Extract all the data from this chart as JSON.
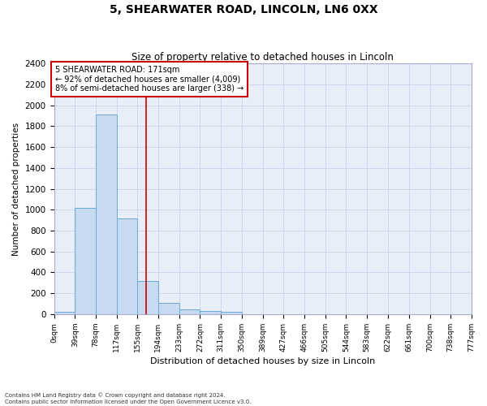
{
  "title": "5, SHEARWATER ROAD, LINCOLN, LN6 0XX",
  "subtitle": "Size of property relative to detached houses in Lincoln",
  "xlabel": "Distribution of detached houses by size in Lincoln",
  "ylabel": "Number of detached properties",
  "annotation_line1": "5 SHEARWATER ROAD: 171sqm",
  "annotation_line2": "← 92% of detached houses are smaller (4,009)",
  "annotation_line3": "8% of semi-detached houses are larger (338) →",
  "bin_edges": [
    0,
    39,
    78,
    117,
    155,
    194,
    233,
    272,
    311,
    350,
    389,
    427,
    466,
    505,
    544,
    583,
    622,
    661,
    700,
    738,
    777
  ],
  "bin_counts": [
    25,
    1020,
    1910,
    920,
    315,
    110,
    50,
    30,
    20,
    0,
    0,
    0,
    0,
    0,
    0,
    0,
    0,
    0,
    0,
    0
  ],
  "bar_color": "#c8daf0",
  "bar_edge_color": "#6aaad4",
  "vline_color": "#cc0000",
  "vline_x": 171,
  "annotation_box_edge_color": "#cc0000",
  "ylim": [
    0,
    2400
  ],
  "yticks": [
    0,
    200,
    400,
    600,
    800,
    1000,
    1200,
    1400,
    1600,
    1800,
    2000,
    2200,
    2400
  ],
  "xtick_labels": [
    "0sqm",
    "39sqm",
    "78sqm",
    "117sqm",
    "155sqm",
    "194sqm",
    "233sqm",
    "272sqm",
    "311sqm",
    "350sqm",
    "389sqm",
    "427sqm",
    "466sqm",
    "505sqm",
    "544sqm",
    "583sqm",
    "622sqm",
    "661sqm",
    "700sqm",
    "738sqm",
    "777sqm"
  ],
  "grid_color": "#cdd8ee",
  "bg_color": "#e8eef8",
  "footer_line1": "Contains HM Land Registry data © Crown copyright and database right 2024.",
  "footer_line2": "Contains public sector information licensed under the Open Government Licence v3.0."
}
